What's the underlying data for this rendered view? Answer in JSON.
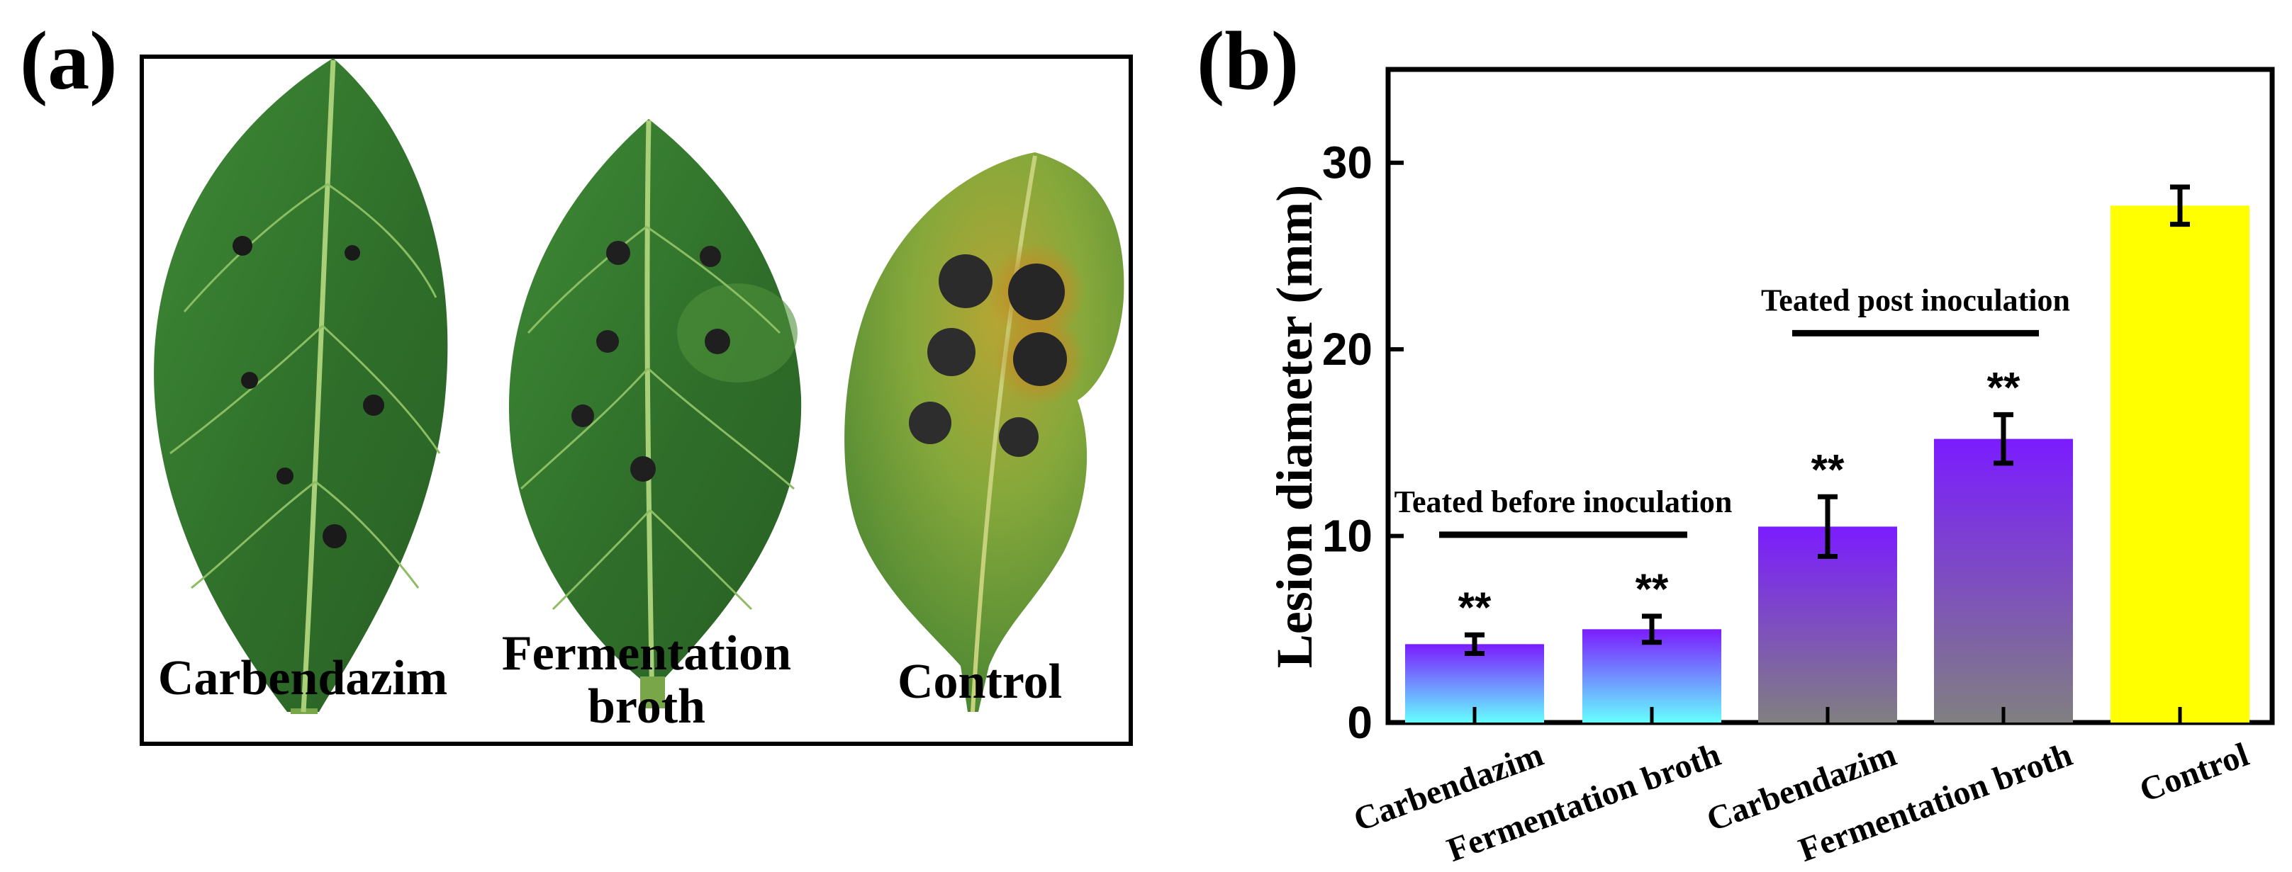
{
  "panel_a": {
    "panel_label": "(a)",
    "leaf_labels": {
      "carbendazim": "Carbendazim",
      "fermentation_line1": "Fermentation",
      "fermentation_line2": "broth",
      "control": "Control"
    }
  },
  "chart_data": {
    "type": "bar",
    "panel_label": "(b)",
    "ylabel": "Lesion diameter (mm)",
    "xlabel": "",
    "ylim": [
      0,
      35
    ],
    "yticks": [
      0,
      10,
      20,
      30
    ],
    "categories": [
      "Carbendazim",
      "Fermentation broth",
      "Carbendazim",
      "Fermentation broth",
      "Control"
    ],
    "values": [
      4.2,
      5.0,
      10.5,
      15.2,
      27.7
    ],
    "errors": [
      0.5,
      0.7,
      1.6,
      1.3,
      1.0
    ],
    "significance": [
      "**",
      "**",
      "**",
      "**",
      ""
    ],
    "groups": [
      {
        "label": "Teated before inoculation",
        "members": [
          0,
          1
        ]
      },
      {
        "label": "Teated post inoculation",
        "members": [
          2,
          3
        ]
      }
    ],
    "bar_colors": [
      {
        "top": "#7b1cff",
        "bottom": "#66ffff"
      },
      {
        "top": "#7b1cff",
        "bottom": "#66ffff"
      },
      {
        "top": "#7b1cff",
        "bottom": "#808080"
      },
      {
        "top": "#7b1cff",
        "bottom": "#808080"
      },
      {
        "top": "#ffff00",
        "bottom": "#ffff00"
      }
    ],
    "grid": false
  }
}
